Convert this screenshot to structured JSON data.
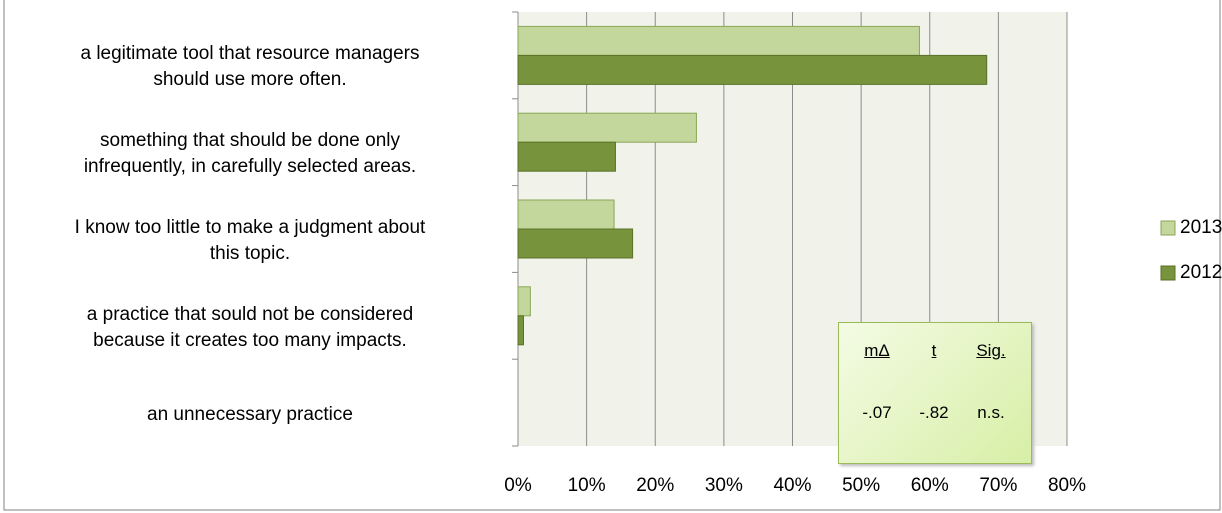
{
  "chart_data": {
    "type": "bar",
    "orientation": "horizontal",
    "categories": [
      "a legitimate tool that resource managers\nshould use more often.",
      "something that should be done only\ninfrequently, in carefully selected areas.",
      "I know too little to make a judgment about\nthis topic.",
      "a practice that sould not be considered\nbecause it creates too many impacts.",
      "an unnecessary practice"
    ],
    "series": [
      {
        "name": "2013",
        "color": "#c3d69b",
        "values": [
          58.5,
          26,
          14,
          1.8,
          0
        ]
      },
      {
        "name": "2012",
        "color": "#77933c",
        "values": [
          68.3,
          14.2,
          16.7,
          0.8,
          0
        ]
      }
    ],
    "xlim": [
      0,
      80
    ],
    "xticks": [
      {
        "value": 0,
        "label": "0%"
      },
      {
        "value": 10,
        "label": "10%"
      },
      {
        "value": 20,
        "label": "20%"
      },
      {
        "value": 30,
        "label": "30%"
      },
      {
        "value": 40,
        "label": "40%"
      },
      {
        "value": 50,
        "label": "50%"
      },
      {
        "value": 60,
        "label": "60%"
      },
      {
        "value": 70,
        "label": "70%"
      },
      {
        "value": 80,
        "label": "80%"
      }
    ],
    "grid": true,
    "legend": "right",
    "annotation": {
      "headers": [
        "mΔ",
        "t",
        "Sig."
      ],
      "values": [
        "-.07",
        "-.82",
        "n.s."
      ]
    }
  }
}
